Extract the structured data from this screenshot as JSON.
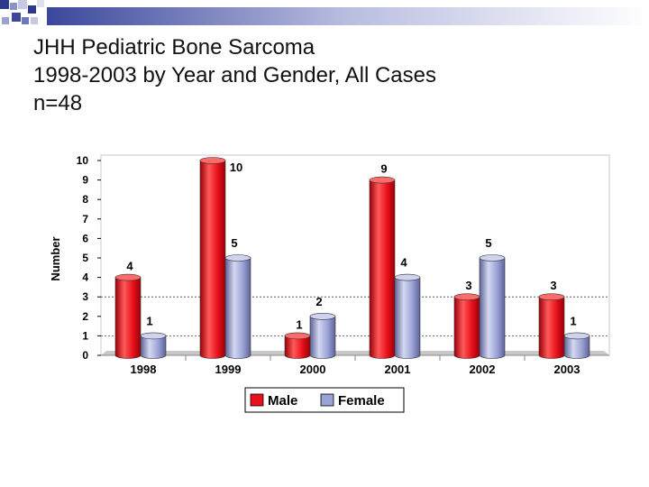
{
  "slide": {
    "title_lines": [
      "JHH Pediatric Bone Sarcoma",
      "1998-2003 by Year and Gender, All Cases",
      "n=48"
    ]
  },
  "chart_data": {
    "type": "bar",
    "categories": [
      "1998",
      "1999",
      "2000",
      "2001",
      "2002",
      "2003"
    ],
    "series": [
      {
        "name": "Male",
        "values": [
          4,
          10,
          1,
          9,
          3,
          3
        ],
        "color": "#e8101a"
      },
      {
        "name": "Female",
        "values": [
          1,
          5,
          2,
          4,
          5,
          1
        ],
        "color": "#9ba2d6"
      }
    ],
    "ylabel": "Number",
    "xlabel": "",
    "ylim": [
      0,
      10
    ],
    "yticks": [
      "0",
      "1",
      "2",
      "3",
      "4",
      "5",
      "6",
      "7",
      "8",
      "9",
      "10"
    ],
    "legend": "bottom",
    "style": "3d-cylinder"
  }
}
